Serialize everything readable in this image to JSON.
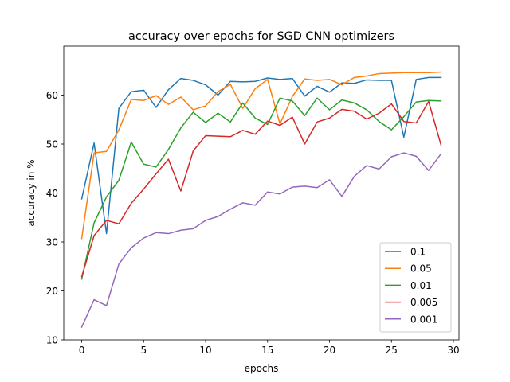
{
  "chart_data": {
    "type": "line",
    "title": "accuracy over epochs for SGD CNN optimizers",
    "xlabel": "epochs",
    "ylabel": "accuracy in %",
    "xlim": [
      -1.45,
      30.45
    ],
    "ylim": [
      10,
      70
    ],
    "xticks": [
      0,
      5,
      10,
      15,
      20,
      25,
      30
    ],
    "yticks": [
      10,
      20,
      30,
      40,
      50,
      60
    ],
    "grid": false,
    "legend_position": "lower-right",
    "x": [
      0,
      1,
      2,
      3,
      4,
      5,
      6,
      7,
      8,
      9,
      10,
      11,
      12,
      13,
      14,
      15,
      16,
      17,
      18,
      19,
      20,
      21,
      22,
      23,
      24,
      25,
      26,
      27,
      28,
      29
    ],
    "series": [
      {
        "name": "0.1",
        "color": "#1f77b4",
        "values": [
          38.8,
          50.2,
          31.7,
          57.3,
          60.7,
          61.0,
          57.5,
          61.1,
          63.4,
          63.0,
          62.1,
          60.0,
          62.8,
          62.7,
          62.8,
          63.5,
          63.2,
          63.4,
          59.8,
          61.8,
          60.6,
          62.5,
          62.4,
          63.1,
          63.0,
          63.0,
          51.4,
          63.2,
          63.6,
          63.6
        ]
      },
      {
        "name": "0.05",
        "color": "#ff7f0e",
        "values": [
          30.7,
          48.2,
          48.5,
          52.9,
          59.1,
          58.9,
          59.9,
          58.1,
          59.6,
          57.0,
          57.8,
          60.7,
          62.2,
          57.3,
          61.3,
          63.2,
          54.1,
          59.7,
          63.3,
          63.0,
          63.2,
          62.1,
          63.6,
          63.9,
          64.4,
          64.5,
          64.6,
          64.6,
          64.6,
          64.7
        ]
      },
      {
        "name": "0.01",
        "color": "#2ca02c",
        "values": [
          22.4,
          33.9,
          39.2,
          42.6,
          50.4,
          45.9,
          45.3,
          48.9,
          53.3,
          56.5,
          54.4,
          56.3,
          54.5,
          58.4,
          55.3,
          54.0,
          59.4,
          58.8,
          55.8,
          59.4,
          57.0,
          59.0,
          58.4,
          57.0,
          54.6,
          52.9,
          55.6,
          58.6,
          58.9,
          58.8
        ]
      },
      {
        "name": "0.005",
        "color": "#d62728",
        "values": [
          22.9,
          31.3,
          34.4,
          33.7,
          37.9,
          40.8,
          43.9,
          46.9,
          40.4,
          48.6,
          51.7,
          51.6,
          51.5,
          52.8,
          52.0,
          54.7,
          53.8,
          55.5,
          50.0,
          54.5,
          55.3,
          57.1,
          56.7,
          55.1,
          56.3,
          58.2,
          54.6,
          54.3,
          58.7,
          49.8
        ]
      },
      {
        "name": "0.001",
        "color": "#9467bd",
        "values": [
          12.6,
          18.2,
          17.0,
          25.5,
          28.8,
          30.8,
          31.9,
          31.7,
          32.4,
          32.7,
          34.4,
          35.2,
          36.7,
          38.0,
          37.5,
          40.2,
          39.8,
          41.2,
          41.4,
          41.1,
          42.7,
          39.3,
          43.4,
          45.6,
          44.9,
          47.4,
          48.2,
          47.5,
          44.6,
          48.0
        ]
      }
    ]
  }
}
